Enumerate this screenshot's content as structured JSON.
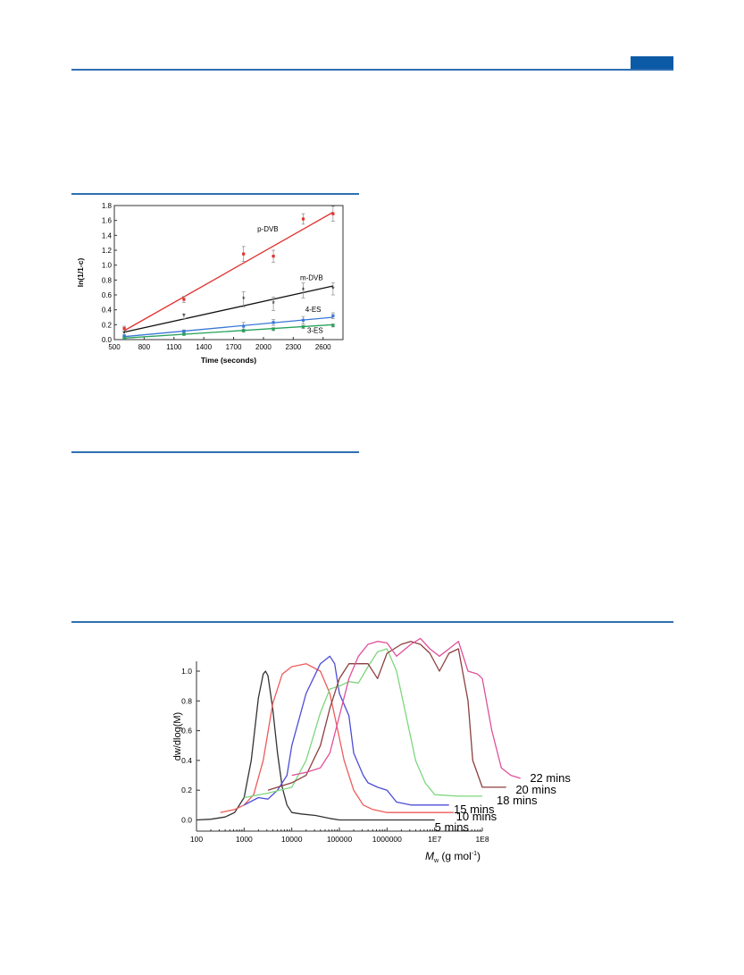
{
  "chart_data": [
    {
      "type": "scatter",
      "xlabel": "Time (seconds)",
      "ylabel": "ln(1/1-c)",
      "xlim": [
        500,
        2800
      ],
      "ylim": [
        0,
        1.8
      ],
      "xticks": [
        "500",
        "800",
        "1100",
        "1400",
        "1700",
        "2000",
        "2300",
        "2600"
      ],
      "yticks": [
        "0.0",
        "0.2",
        "0.4",
        "0.6",
        "0.8",
        "1.0",
        "1.2",
        "1.4",
        "1.6",
        "1.8"
      ],
      "series": [
        {
          "name": "p-DVB",
          "color": "#e0322e",
          "marker": "square",
          "x": [
            600,
            1200,
            1800,
            2100,
            2400,
            2700
          ],
          "y": [
            0.15,
            0.54,
            1.15,
            1.12,
            1.62,
            1.69
          ],
          "err": [
            0.03,
            0.04,
            0.1,
            0.08,
            0.07,
            0.1
          ],
          "fit": [
            [
              600,
              0.12
            ],
            [
              2700,
              1.71
            ]
          ]
        },
        {
          "name": "m-DVB",
          "color": "#111111",
          "marker": "star",
          "x": [
            600,
            1200,
            1800,
            2100,
            2400,
            2700
          ],
          "y": [
            0.08,
            0.31,
            0.54,
            0.48,
            0.66,
            0.68
          ],
          "err": [
            0.02,
            0.03,
            0.1,
            0.09,
            0.1,
            0.08
          ],
          "fit": [
            [
              600,
              0.1
            ],
            [
              2700,
              0.72
            ]
          ]
        },
        {
          "name": "4-ES",
          "color": "#3a78d6",
          "marker": "square",
          "x": [
            600,
            1200,
            1800,
            2100,
            2400,
            2700
          ],
          "y": [
            0.05,
            0.11,
            0.18,
            0.23,
            0.26,
            0.32
          ],
          "err": [
            0.01,
            0.02,
            0.05,
            0.04,
            0.05,
            0.04
          ],
          "fit": [
            [
              600,
              0.04
            ],
            [
              2700,
              0.3
            ]
          ]
        },
        {
          "name": "3-ES",
          "color": "#27a35a",
          "marker": "square",
          "x": [
            600,
            1200,
            1800,
            2100,
            2400,
            2700
          ],
          "y": [
            0.02,
            0.07,
            0.12,
            0.14,
            0.17,
            0.19
          ],
          "err": [
            0.01,
            0.01,
            0.02,
            0.02,
            0.02,
            0.02
          ],
          "fit": [
            [
              600,
              0.02
            ],
            [
              2700,
              0.2
            ]
          ]
        }
      ],
      "grid": false
    },
    {
      "type": "line",
      "xlabel_main": "M",
      "xlabel_sub": "w",
      "xlabel_rest": " (g mol",
      "xlabel_sup": "-1",
      "xlabel_close": ")",
      "ylabel": "dw/dlog(M)",
      "x_scale": "log",
      "xlim": [
        100,
        100000000
      ],
      "ylim": [
        -0.05,
        1.2
      ],
      "xticks": [
        "100",
        "1000",
        "10000",
        "100000",
        "1000000",
        "1E7",
        "1E8"
      ],
      "yticks": [
        "0.0",
        "0.2",
        "0.4",
        "0.6",
        "0.8",
        "1.0"
      ],
      "series": [
        {
          "name": "5 mins",
          "color": "#333333",
          "logx": [
            2.0,
            2.3,
            2.6,
            2.8,
            3.0,
            3.15,
            3.3,
            3.4,
            3.45,
            3.5,
            3.6,
            3.7,
            3.8,
            3.9,
            4.0,
            4.2,
            4.5,
            4.8,
            5.0,
            5.5,
            6.0,
            6.5,
            7.0
          ],
          "y": [
            0.0,
            0.005,
            0.02,
            0.05,
            0.15,
            0.4,
            0.82,
            0.98,
            1.0,
            0.97,
            0.75,
            0.45,
            0.22,
            0.1,
            0.05,
            0.04,
            0.03,
            0.01,
            0.0,
            0.0,
            0.0,
            0.0,
            0.0
          ],
          "label_pos": [
            7.0,
            -0.05
          ]
        },
        {
          "name": "10 mins",
          "color": "#ee5b5b",
          "logx": [
            2.5,
            2.8,
            3.0,
            3.2,
            3.4,
            3.6,
            3.8,
            4.0,
            4.3,
            4.6,
            4.8,
            4.9,
            5.0,
            5.1,
            5.3,
            5.5,
            5.7,
            6.0,
            6.5,
            7.0,
            7.3,
            7.4
          ],
          "y": [
            0.05,
            0.07,
            0.1,
            0.17,
            0.4,
            0.78,
            0.98,
            1.03,
            1.05,
            1.0,
            0.85,
            0.7,
            0.55,
            0.4,
            0.2,
            0.1,
            0.07,
            0.05,
            0.05,
            0.05,
            0.05,
            0.05
          ],
          "label_pos": [
            7.45,
            0.02
          ]
        },
        {
          "name": "15 mins",
          "color": "#4c4cd8",
          "logx": [
            3.0,
            3.3,
            3.5,
            3.7,
            3.9,
            4.0,
            4.3,
            4.6,
            4.8,
            4.9,
            5.0,
            5.2,
            5.3,
            5.5,
            5.6,
            5.8,
            6.0,
            6.2,
            6.5,
            7.0,
            7.3
          ],
          "y": [
            0.1,
            0.15,
            0.14,
            0.2,
            0.3,
            0.5,
            0.85,
            1.05,
            1.1,
            1.05,
            0.85,
            0.7,
            0.45,
            0.3,
            0.25,
            0.22,
            0.2,
            0.12,
            0.1,
            0.1,
            0.1
          ],
          "label_pos": [
            7.4,
            0.07
          ]
        },
        {
          "name": "18 mins",
          "color": "#7ed67e",
          "logx": [
            3.0,
            3.5,
            4.0,
            4.3,
            4.6,
            4.8,
            5.0,
            5.2,
            5.4,
            5.6,
            5.8,
            6.0,
            6.2,
            6.4,
            6.6,
            6.8,
            7.0,
            7.5,
            8.0
          ],
          "y": [
            0.15,
            0.18,
            0.22,
            0.4,
            0.72,
            0.88,
            0.9,
            0.93,
            0.92,
            1.03,
            1.13,
            1.15,
            1.0,
            0.7,
            0.4,
            0.25,
            0.17,
            0.16,
            0.16
          ],
          "label_pos": [
            8.3,
            0.13
          ]
        },
        {
          "name": "20 mins",
          "color": "#8b3f3f",
          "logx": [
            3.5,
            4.0,
            4.3,
            4.6,
            4.8,
            5.0,
            5.2,
            5.4,
            5.6,
            5.8,
            6.0,
            6.3,
            6.5,
            6.7,
            6.9,
            7.1,
            7.3,
            7.5,
            7.7,
            7.8,
            8.0,
            8.5
          ],
          "y": [
            0.2,
            0.25,
            0.3,
            0.5,
            0.75,
            0.95,
            1.05,
            1.05,
            1.05,
            0.95,
            1.12,
            1.18,
            1.2,
            1.18,
            1.12,
            1.0,
            1.12,
            1.15,
            0.8,
            0.4,
            0.22,
            0.22
          ],
          "label_pos": [
            8.7,
            0.2
          ]
        },
        {
          "name": "22 mins",
          "color": "#e0509a",
          "logx": [
            4.0,
            4.3,
            4.6,
            4.8,
            5.0,
            5.2,
            5.4,
            5.6,
            5.8,
            6.0,
            6.2,
            6.5,
            6.7,
            6.9,
            7.1,
            7.3,
            7.5,
            7.7,
            7.9,
            8.0,
            8.2,
            8.4,
            8.6,
            8.8
          ],
          "y": [
            0.3,
            0.32,
            0.35,
            0.45,
            0.7,
            0.95,
            1.1,
            1.18,
            1.2,
            1.19,
            1.1,
            1.18,
            1.22,
            1.15,
            1.1,
            1.15,
            1.2,
            1.0,
            0.98,
            0.95,
            0.6,
            0.35,
            0.3,
            0.28
          ],
          "label_pos": [
            9.0,
            0.28
          ]
        }
      ]
    }
  ]
}
